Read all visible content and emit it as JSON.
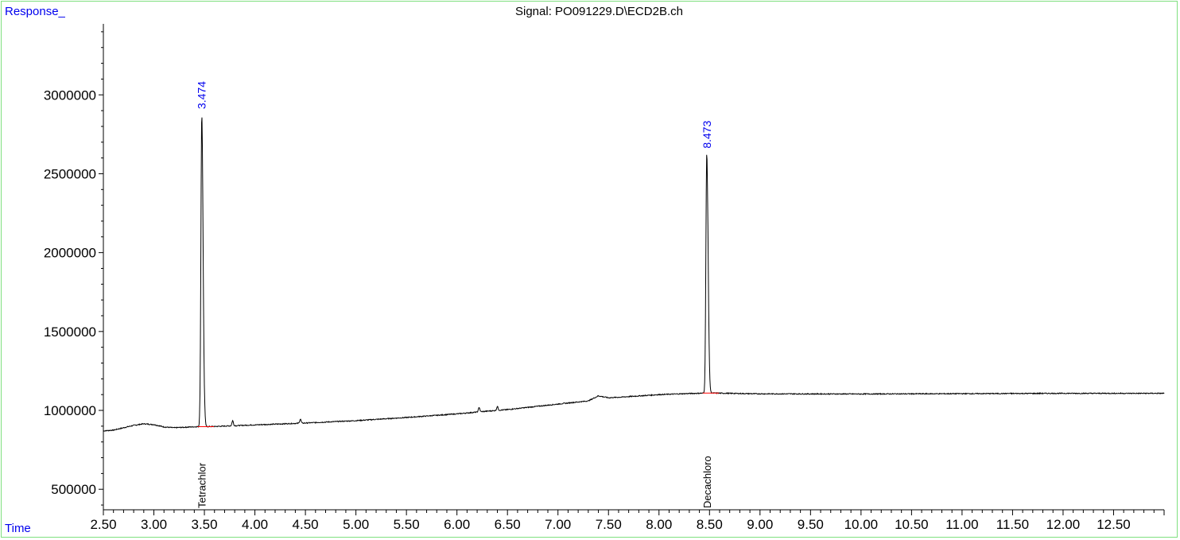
{
  "header": {
    "y_axis_caption": "Response_",
    "x_axis_caption": "Time",
    "signal_title": "Signal: PO091229.D\\ECD2B.ch"
  },
  "colors": {
    "frame": "#7fe07f",
    "accent_text": "#0000ee",
    "trace": "#000000",
    "baseline": "#ff0000"
  },
  "chart_data": {
    "type": "line",
    "title": "Signal: PO091229.D\\ECD2B.ch",
    "xlabel": "Time",
    "ylabel": "Response_",
    "xlim": [
      2.5,
      13.0
    ],
    "ylim": [
      370000,
      3450000
    ],
    "x_ticks": [
      2.5,
      3.0,
      3.5,
      4.0,
      4.5,
      5.0,
      5.5,
      6.0,
      6.5,
      7.0,
      7.5,
      8.0,
      8.5,
      9.0,
      9.5,
      10.0,
      10.5,
      11.0,
      11.5,
      12.0,
      12.5
    ],
    "x_tick_labels": [
      "2.50",
      "3.00",
      "3.50",
      "4.00",
      "4.50",
      "5.00",
      "5.50",
      "6.00",
      "6.50",
      "7.00",
      "7.50",
      "8.00",
      "8.50",
      "9.00",
      "9.50",
      "10.00",
      "10.50",
      "11.00",
      "11.50",
      "12.00",
      "12.50"
    ],
    "y_ticks": [
      500000,
      1000000,
      1500000,
      2000000,
      2500000,
      3000000
    ],
    "y_tick_labels": [
      "500000",
      "1000000",
      "1500000",
      "2000000",
      "2500000",
      "3000000"
    ],
    "baseline_points": [
      [
        2.5,
        870000
      ],
      [
        2.6,
        875000
      ],
      [
        2.7,
        890000
      ],
      [
        2.8,
        905000
      ],
      [
        2.9,
        915000
      ],
      [
        3.0,
        910000
      ],
      [
        3.1,
        895000
      ],
      [
        3.2,
        890000
      ],
      [
        3.3,
        893000
      ],
      [
        3.4,
        896000
      ],
      [
        3.6,
        898000
      ],
      [
        3.8,
        903000
      ],
      [
        4.0,
        908000
      ],
      [
        4.5,
        920000
      ],
      [
        5.0,
        935000
      ],
      [
        5.5,
        955000
      ],
      [
        6.0,
        978000
      ],
      [
        6.3,
        995000
      ],
      [
        6.5,
        1005000
      ],
      [
        7.0,
        1040000
      ],
      [
        7.3,
        1060000
      ],
      [
        7.4,
        1092000
      ],
      [
        7.5,
        1080000
      ],
      [
        7.6,
        1083000
      ],
      [
        8.0,
        1100000
      ],
      [
        8.3,
        1107000
      ],
      [
        8.5,
        1110000
      ],
      [
        9.0,
        1105000
      ],
      [
        10.0,
        1104000
      ],
      [
        11.0,
        1106000
      ],
      [
        12.0,
        1108000
      ],
      [
        13.0,
        1108000
      ]
    ],
    "peaks": [
      {
        "rt": 3.474,
        "label": "3.474",
        "apex": 2880000,
        "compound": "Tetrachlor"
      },
      {
        "rt": 8.473,
        "label": "8.473",
        "apex": 2630000,
        "compound": "Decachloro"
      }
    ],
    "minor_peaks": [
      {
        "rt": 3.78,
        "apex": 935000
      },
      {
        "rt": 4.45,
        "apex": 945000
      },
      {
        "rt": 6.22,
        "apex": 1020000
      },
      {
        "rt": 6.4,
        "apex": 1025000
      }
    ],
    "grid": false,
    "legend": "none"
  }
}
